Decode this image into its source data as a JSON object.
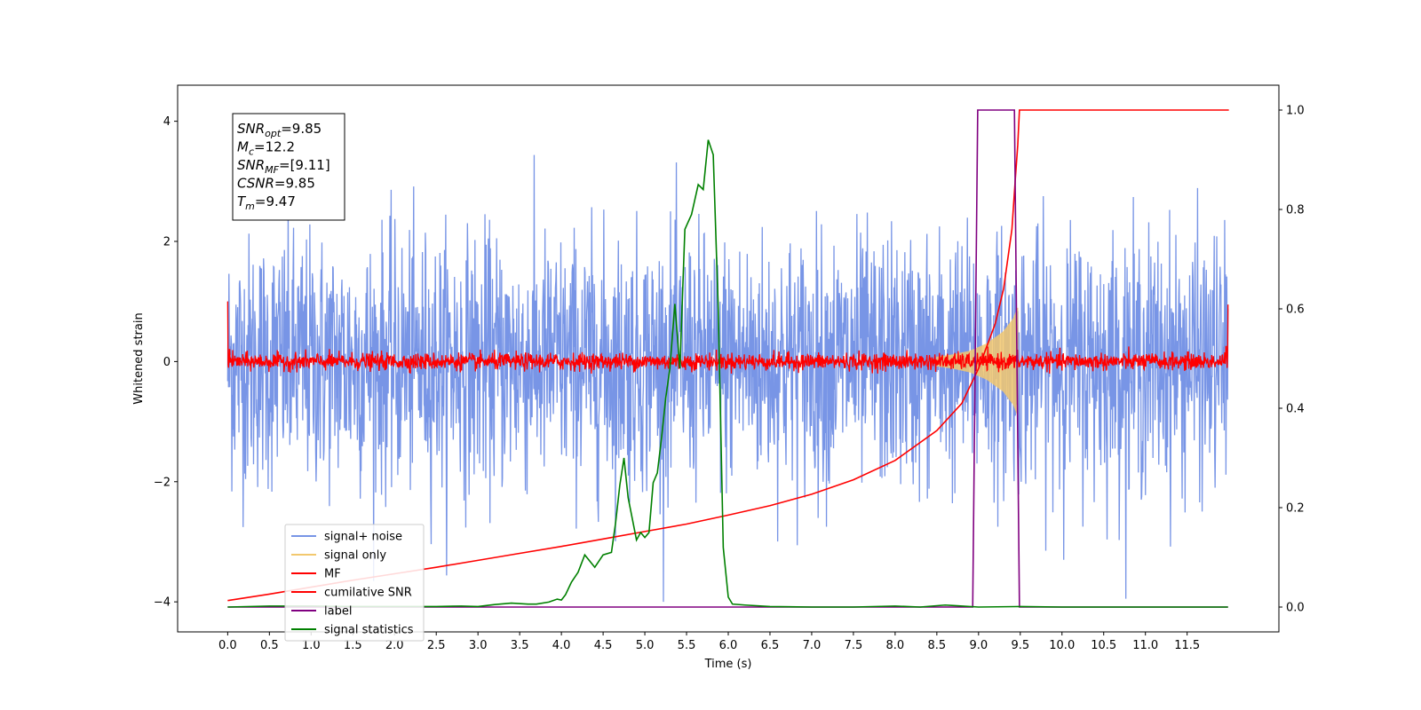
{
  "chart_data": {
    "type": "line",
    "xlabel": "Time (s)",
    "ylabel": "Whitened strain",
    "xlim": [
      -0.6,
      12.6
    ],
    "ylim": [
      -4.5,
      4.6
    ],
    "ylim_right": [
      -0.05,
      1.05
    ],
    "x_ticks": [
      0.0,
      0.5,
      1.0,
      1.5,
      2.0,
      2.5,
      3.0,
      3.5,
      4.0,
      4.5,
      5.0,
      5.5,
      6.0,
      6.5,
      7.0,
      7.5,
      8.0,
      8.5,
      9.0,
      9.5,
      10.0,
      10.5,
      11.0,
      11.5
    ],
    "x_tick_labels": [
      "0.0",
      "0.5",
      "1.0",
      "1.5",
      "2.0",
      "2.5",
      "3.0",
      "3.5",
      "4.0",
      "4.5",
      "5.0",
      "5.5",
      "6.0",
      "6.5",
      "7.0",
      "7.5",
      "8.0",
      "8.5",
      "9.0",
      "9.5",
      "10.0",
      "10.5",
      "11.0",
      "11.5"
    ],
    "y_ticks": [
      -4,
      -2,
      0,
      2,
      4
    ],
    "y_tick_labels": [
      "−4",
      "−2",
      "0",
      "2",
      "4"
    ],
    "y_ticks_right": [
      0.0,
      0.2,
      0.4,
      0.6,
      0.8,
      1.0
    ],
    "y_tick_labels_right": [
      "0.0",
      "0.2",
      "0.4",
      "0.6",
      "0.8",
      "1.0"
    ],
    "legend_location": "lower-left",
    "grid": false,
    "info_box": [
      {
        "base": "SNR",
        "sub": "opt",
        "rest": "=9.85"
      },
      {
        "base": "M",
        "sub": "c",
        "rest": "=12.2"
      },
      {
        "base": "SNR",
        "sub": "MF",
        "rest": "=[9.11]"
      },
      {
        "base": "CSNR",
        "sub": "",
        "rest": "=9.85"
      },
      {
        "base": "T",
        "sub": "m",
        "rest": "=9.47"
      }
    ],
    "series": [
      {
        "name": "signal+ noise",
        "axis": "left",
        "color": "#7895e6",
        "kind": "noise",
        "x_range": [
          0.0,
          11.99
        ],
        "samples": 2400,
        "sigma": 1.05,
        "y_extent": [
          -4.0,
          3.8
        ]
      },
      {
        "name": "signal only",
        "axis": "left",
        "color": "#f2c86e",
        "kind": "chirp",
        "x_range": [
          8.5,
          9.47
        ],
        "envelope": [
          [
            8.5,
            0.08
          ],
          [
            8.7,
            0.12
          ],
          [
            8.9,
            0.18
          ],
          [
            9.1,
            0.3
          ],
          [
            9.3,
            0.5
          ],
          [
            9.42,
            0.72
          ],
          [
            9.47,
            0.9
          ]
        ]
      },
      {
        "name": "MF",
        "axis": "left",
        "color": "#ff0000",
        "kind": "noise",
        "x_range": [
          0.0,
          11.99
        ],
        "samples": 2400,
        "sigma": 0.07,
        "y_extent": [
          -0.2,
          0.3
        ],
        "edge_values": [
          [
            0.0,
            1.0
          ],
          [
            0.02,
            0.2
          ],
          [
            11.97,
            0.25
          ],
          [
            11.99,
            0.95
          ]
        ]
      },
      {
        "name": "cumilative SNR",
        "axis": "right",
        "color": "#ff0000",
        "kind": "line",
        "points": [
          [
            0.0,
            0.013
          ],
          [
            0.5,
            0.026
          ],
          [
            1.0,
            0.04
          ],
          [
            1.5,
            0.054
          ],
          [
            2.0,
            0.067
          ],
          [
            2.5,
            0.08
          ],
          [
            3.0,
            0.094
          ],
          [
            3.5,
            0.108
          ],
          [
            4.0,
            0.122
          ],
          [
            4.5,
            0.137
          ],
          [
            5.0,
            0.152
          ],
          [
            5.5,
            0.167
          ],
          [
            6.0,
            0.185
          ],
          [
            6.5,
            0.204
          ],
          [
            7.0,
            0.227
          ],
          [
            7.5,
            0.256
          ],
          [
            8.0,
            0.295
          ],
          [
            8.5,
            0.355
          ],
          [
            8.8,
            0.41
          ],
          [
            9.0,
            0.48
          ],
          [
            9.2,
            0.57
          ],
          [
            9.3,
            0.64
          ],
          [
            9.4,
            0.76
          ],
          [
            9.44,
            0.86
          ],
          [
            9.47,
            0.93
          ],
          [
            9.49,
            1.0
          ],
          [
            12.0,
            1.0
          ]
        ]
      },
      {
        "name": "label",
        "axis": "right",
        "color": "#800080",
        "kind": "line",
        "points": [
          [
            0.0,
            0.0
          ],
          [
            8.93,
            0.0
          ],
          [
            8.99,
            1.0
          ],
          [
            9.43,
            1.0
          ],
          [
            9.49,
            0.0
          ],
          [
            11.99,
            0.0
          ]
        ]
      },
      {
        "name": "signal statistics",
        "axis": "right",
        "color": "#008000",
        "kind": "line",
        "points": [
          [
            0.0,
            0.0
          ],
          [
            0.5,
            0.002
          ],
          [
            1.0,
            0.002
          ],
          [
            1.5,
            0.001
          ],
          [
            2.0,
            0.001
          ],
          [
            2.5,
            0.001
          ],
          [
            2.8,
            0.002
          ],
          [
            3.0,
            0.001
          ],
          [
            3.2,
            0.005
          ],
          [
            3.4,
            0.008
          ],
          [
            3.6,
            0.006
          ],
          [
            3.7,
            0.006
          ],
          [
            3.85,
            0.01
          ],
          [
            3.95,
            0.016
          ],
          [
            4.0,
            0.014
          ],
          [
            4.05,
            0.025
          ],
          [
            4.12,
            0.05
          ],
          [
            4.2,
            0.07
          ],
          [
            4.28,
            0.105
          ],
          [
            4.4,
            0.08
          ],
          [
            4.5,
            0.105
          ],
          [
            4.6,
            0.11
          ],
          [
            4.65,
            0.17
          ],
          [
            4.7,
            0.245
          ],
          [
            4.75,
            0.3
          ],
          [
            4.8,
            0.22
          ],
          [
            4.9,
            0.135
          ],
          [
            4.95,
            0.15
          ],
          [
            5.0,
            0.14
          ],
          [
            5.05,
            0.15
          ],
          [
            5.1,
            0.25
          ],
          [
            5.15,
            0.27
          ],
          [
            5.2,
            0.34
          ],
          [
            5.25,
            0.42
          ],
          [
            5.3,
            0.48
          ],
          [
            5.36,
            0.61
          ],
          [
            5.42,
            0.48
          ],
          [
            5.48,
            0.76
          ],
          [
            5.56,
            0.79
          ],
          [
            5.64,
            0.85
          ],
          [
            5.7,
            0.84
          ],
          [
            5.76,
            0.94
          ],
          [
            5.82,
            0.91
          ],
          [
            5.88,
            0.6
          ],
          [
            5.94,
            0.12
          ],
          [
            6.0,
            0.02
          ],
          [
            6.05,
            0.006
          ],
          [
            6.2,
            0.004
          ],
          [
            6.5,
            0.001
          ],
          [
            7.0,
            0.0
          ],
          [
            7.5,
            0.0
          ],
          [
            8.0,
            0.002
          ],
          [
            8.3,
            0.0
          ],
          [
            8.6,
            0.004
          ],
          [
            8.7,
            0.003
          ],
          [
            9.0,
            0.0
          ],
          [
            9.5,
            0.001
          ],
          [
            10.0,
            0.0
          ],
          [
            11.0,
            0.0
          ],
          [
            11.99,
            0.0
          ]
        ]
      }
    ]
  }
}
